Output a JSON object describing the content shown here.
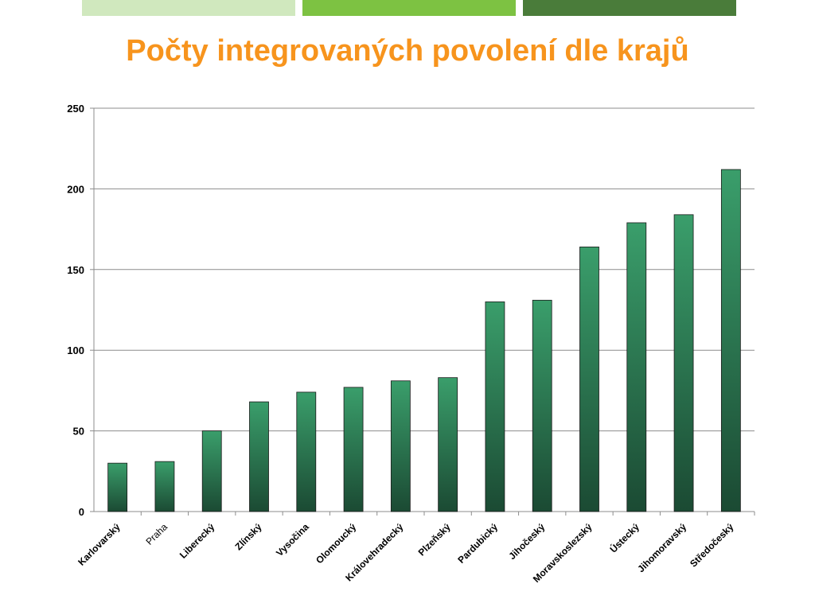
{
  "slide": {
    "title": "Počty integrovaných povolení dle krajů",
    "title_color": "#F7941D",
    "top_bars": [
      {
        "color": "#D0E8BE"
      },
      {
        "color": "#7DC242"
      },
      {
        "color": "#4A7C3A"
      }
    ]
  },
  "chart_data": {
    "type": "bar",
    "title": "",
    "xlabel": "",
    "ylabel": "",
    "ylim": [
      0,
      250
    ],
    "yticks": [
      0,
      50,
      100,
      150,
      200,
      250
    ],
    "grid": true,
    "legend": "none",
    "bar_color_top": "#3A9E6B",
    "bar_color_bottom": "#1B4A33",
    "categories": [
      "Karlovarský",
      "Praha",
      "Liberecký",
      "Zlínský",
      "Vysočina",
      "Olomoucký",
      "Královehradecký",
      "Plzeňský",
      "Pardubický",
      "Jihočeský",
      "Moravskoslezský",
      "Ústecký",
      "Jihomoravský",
      "Středočeský"
    ],
    "values": [
      30,
      31,
      50,
      68,
      74,
      77,
      81,
      83,
      130,
      131,
      164,
      179,
      184,
      212
    ]
  }
}
